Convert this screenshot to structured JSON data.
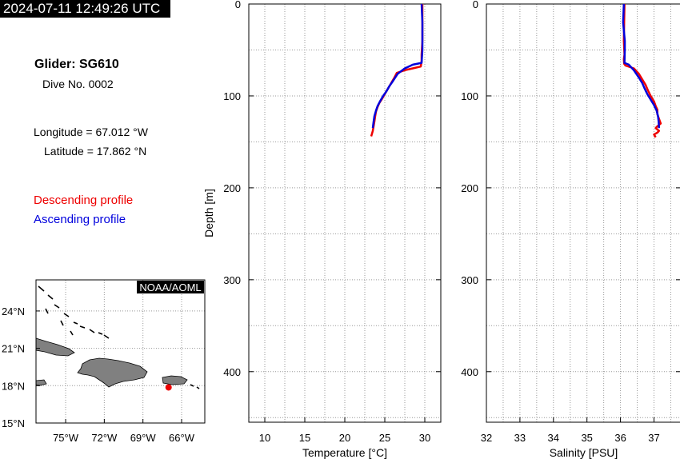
{
  "header": {
    "timestamp": "2024-07-11 12:49:26 UTC"
  },
  "info": {
    "glider": "Glider: SG610",
    "dive": "Dive No. 0002",
    "longitude": "Longitude = 67.012 °W",
    "latitude": "Latitude = 17.862 °N"
  },
  "legend": {
    "descending": "Descending profile",
    "ascending": "Ascending profile",
    "descending_color": "#ee0000",
    "ascending_color": "#0000dd"
  },
  "map": {
    "credit": "NOAA/AOML",
    "lat_ticks": [
      "24°N",
      "21°N",
      "18°N",
      "15°N"
    ],
    "lon_ticks": [
      "75°W",
      "72°W",
      "69°W",
      "66°W"
    ],
    "lat_values": [
      24,
      21,
      18,
      15
    ],
    "lon_values": [
      -75,
      -72,
      -69,
      -66
    ],
    "lon_range": [
      -77.3,
      -64.2
    ],
    "lat_range": [
      15,
      26.5
    ],
    "glider_position": {
      "lon": -67.012,
      "lat": 17.862
    },
    "land_color": "#808080",
    "marker_color": "#ee0000"
  },
  "chart_data": [
    {
      "type": "line",
      "xlabel": "Temperature [°C]",
      "ylabel": "Depth [m]",
      "xlim": [
        8,
        32
      ],
      "ylim": [
        455,
        0
      ],
      "x_ticks": [
        10,
        15,
        20,
        25,
        30
      ],
      "y_ticks": [
        0,
        100,
        200,
        300,
        400
      ],
      "grid": true,
      "series": [
        {
          "name": "Descending profile",
          "color": "#ee0000",
          "x": [
            29.7,
            29.7,
            29.7,
            29.6,
            29.6,
            29.5,
            28.5,
            27.5,
            26.5,
            26.2,
            25.8,
            25.4,
            25.0,
            24.6,
            24.3,
            24.1,
            23.9,
            23.8,
            23.7,
            23.6,
            23.5,
            23.4,
            23.3
          ],
          "y": [
            0,
            20,
            40,
            55,
            62,
            68,
            70,
            72,
            75,
            80,
            86,
            92,
            98,
            104,
            108,
            112,
            117,
            122,
            128,
            133,
            138,
            141,
            144
          ]
        },
        {
          "name": "Ascending profile",
          "color": "#0000dd",
          "x": [
            23.5,
            23.6,
            23.7,
            23.9,
            24.1,
            24.4,
            24.8,
            25.2,
            25.6,
            26.0,
            26.6,
            27.5,
            28.5,
            29.6,
            29.7,
            29.7,
            29.6
          ],
          "y": [
            135,
            128,
            122,
            116,
            111,
            106,
            100,
            95,
            89,
            84,
            76,
            70,
            66,
            64,
            50,
            20,
            0
          ]
        }
      ]
    },
    {
      "type": "line",
      "xlabel": "Salinity [PSU]",
      "ylabel": "",
      "xlim": [
        32,
        37.8
      ],
      "ylim": [
        455,
        0
      ],
      "x_ticks": [
        32,
        33,
        34,
        35,
        36,
        37
      ],
      "y_ticks": [
        0,
        100,
        200,
        300,
        400
      ],
      "grid": true,
      "series": [
        {
          "name": "Descending profile",
          "color": "#ee0000",
          "x": [
            36.12,
            36.11,
            36.1,
            36.12,
            36.1,
            36.11,
            36.15,
            36.4,
            36.55,
            36.65,
            36.75,
            36.82,
            36.9,
            37.0,
            37.05,
            37.1,
            37.1,
            37.15,
            37.2,
            37.1,
            37.05,
            37.15,
            37.1,
            37.0,
            37.05
          ],
          "y": [
            0,
            20,
            40,
            55,
            60,
            65,
            67,
            70,
            76,
            82,
            88,
            94,
            100,
            106,
            111,
            115,
            120,
            125,
            130,
            133,
            135,
            138,
            140,
            142,
            145
          ]
        },
        {
          "name": "Ascending profile",
          "color": "#0000dd",
          "x": [
            37.15,
            37.14,
            37.12,
            37.08,
            37.0,
            36.9,
            36.8,
            36.72,
            36.65,
            36.55,
            36.4,
            36.25,
            36.12,
            36.13,
            36.13,
            36.08,
            36.1
          ],
          "y": [
            135,
            128,
            122,
            116,
            110,
            104,
            98,
            92,
            86,
            80,
            72,
            66,
            64,
            50,
            40,
            20,
            0
          ]
        }
      ]
    }
  ]
}
